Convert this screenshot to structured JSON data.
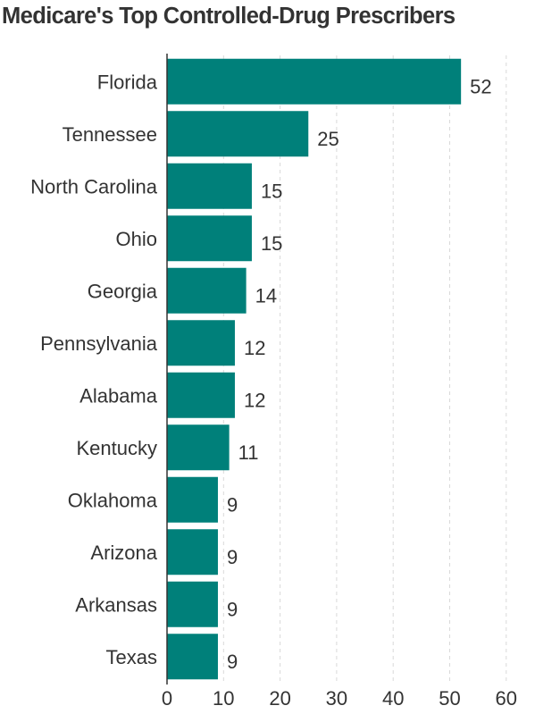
{
  "chart_data": {
    "type": "bar",
    "orientation": "horizontal",
    "title": "Medicare's Top Controlled-Drug Prescribers",
    "categories": [
      "Florida",
      "Tennessee",
      "North Carolina",
      "Ohio",
      "Georgia",
      "Pennsylvania",
      "Alabama",
      "Kentucky",
      "Oklahoma",
      "Arizona",
      "Arkansas",
      "Texas"
    ],
    "values": [
      52,
      25,
      15,
      15,
      14,
      12,
      12,
      11,
      9,
      9,
      9,
      9
    ],
    "value_labels": [
      "52",
      "25",
      "15",
      "15",
      "14",
      "12",
      "12",
      "11",
      "9",
      "9",
      "9",
      "9"
    ],
    "xlim": [
      0,
      60
    ],
    "xticks": [
      0,
      10,
      20,
      30,
      40,
      50,
      60
    ],
    "xtick_labels": [
      "0",
      "10",
      "20",
      "30",
      "40",
      "50",
      "60"
    ],
    "xlabel": "",
    "ylabel": "",
    "grid": "vertical dashed",
    "bar_color": "#00807a"
  }
}
